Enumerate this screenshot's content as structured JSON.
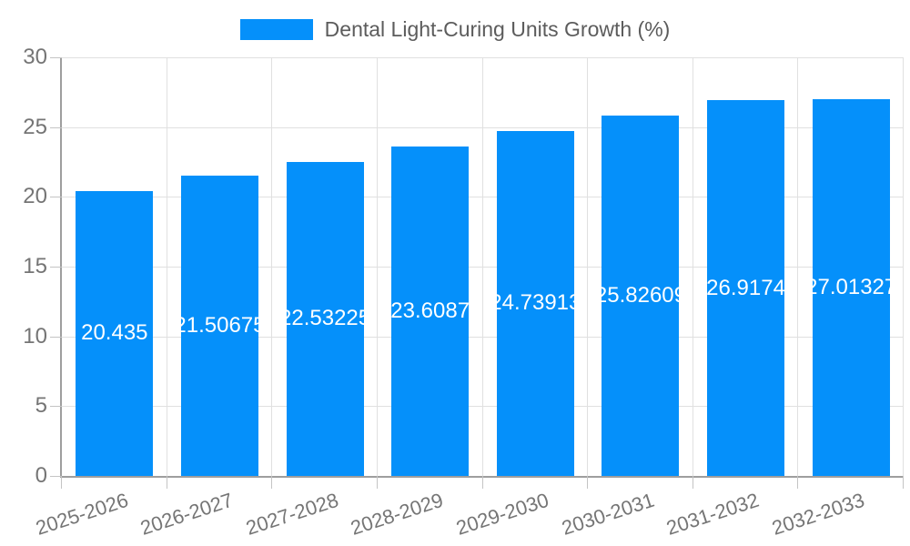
{
  "legend": {
    "label": "Dental Light-Curing Units Growth (%)",
    "swatch_color": "#0590FA"
  },
  "chart_data": {
    "type": "bar",
    "title": "Dental Light-Curing Units Growth (%)",
    "categories": [
      "2025-2026",
      "2026-2027",
      "2027-2028",
      "2028-2029",
      "2029-2030",
      "2030-2031",
      "2031-2032",
      "2032-2033"
    ],
    "values": [
      20.435,
      21.50675,
      22.53225,
      23.6087,
      24.73913,
      25.82609,
      26.9174,
      27.01327
    ],
    "bar_labels": [
      "20.435",
      "21.50675",
      "22.53225",
      "23.6087",
      "24.73913",
      "25.82609",
      "26.9174",
      "27.01327"
    ],
    "xlabel": "",
    "ylabel": "",
    "ylim": [
      0,
      30
    ],
    "yticks": [
      0,
      5,
      10,
      15,
      20,
      25,
      30
    ],
    "grid": "both",
    "legend_position": "top-center",
    "bar_color": "#0590FA",
    "bar_label_color": "#FFFFFF",
    "axis_label_color": "#757575",
    "x_label_rotation_deg": -18
  }
}
